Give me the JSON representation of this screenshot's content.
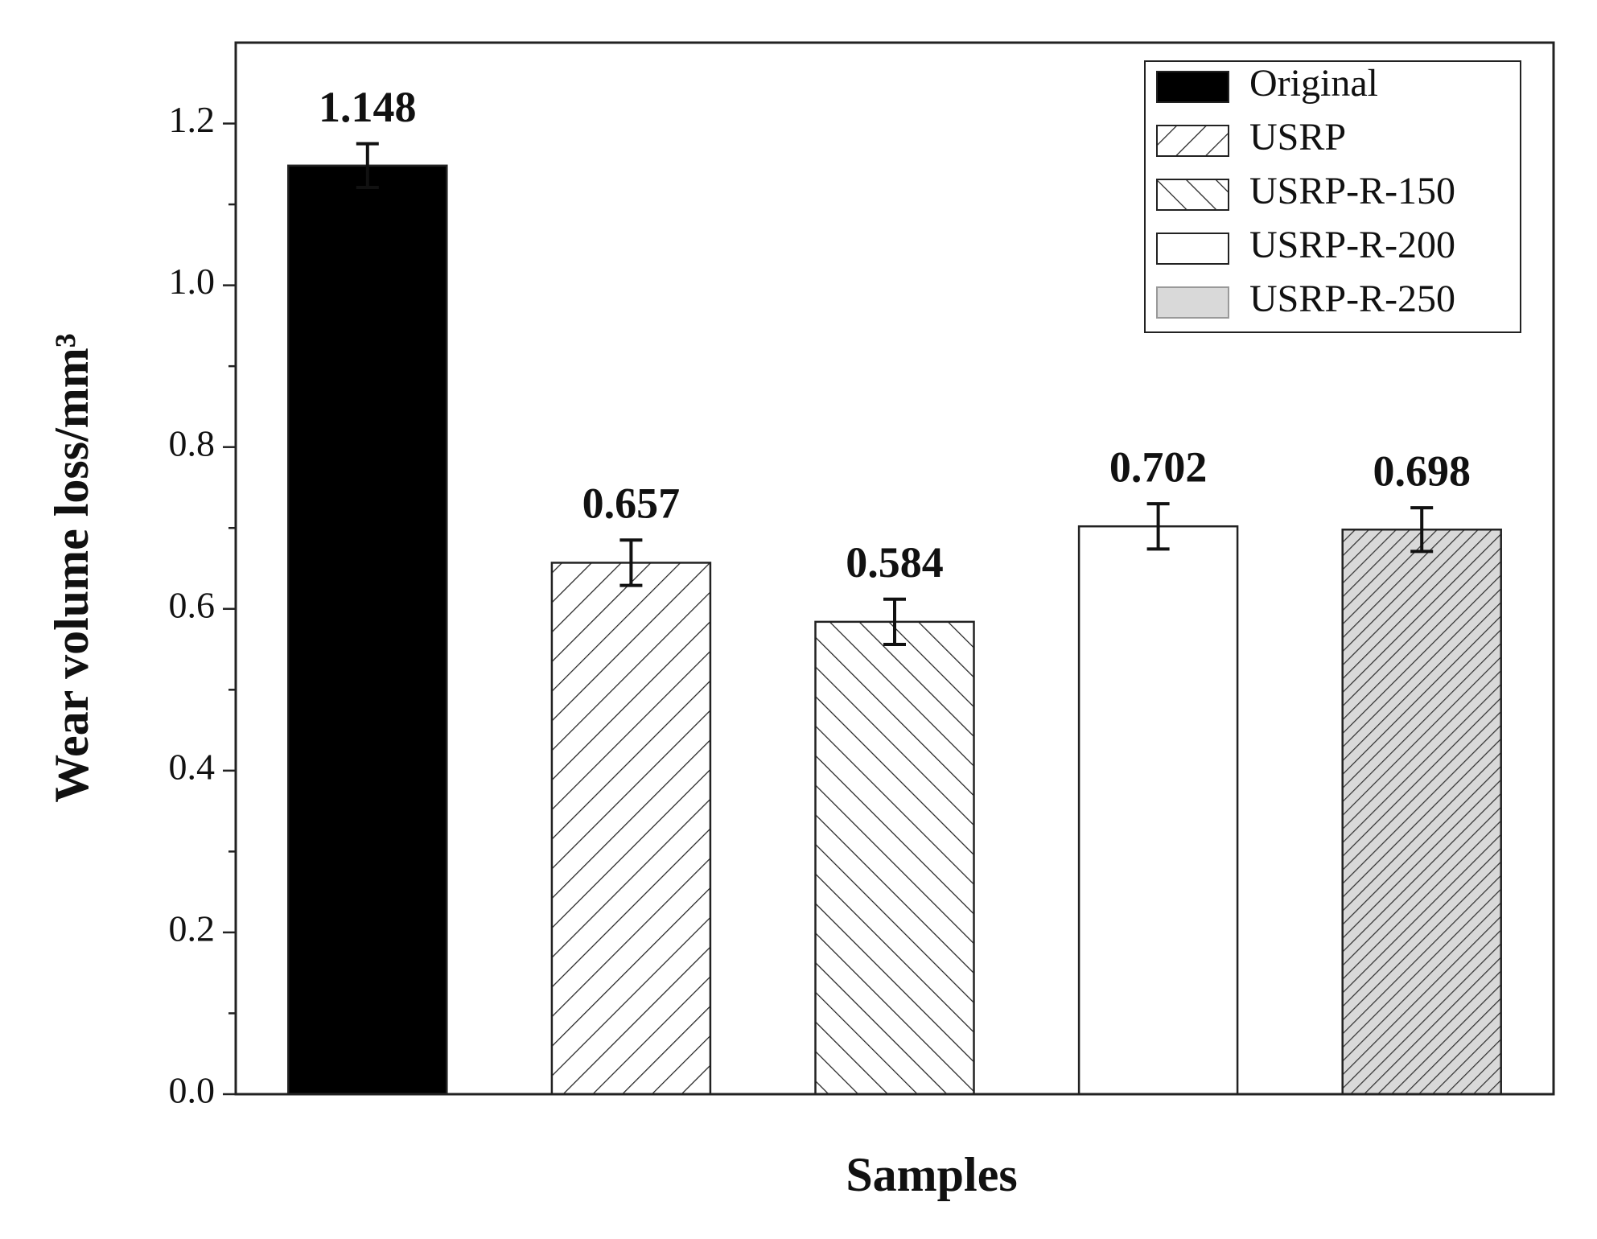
{
  "chart_data": {
    "type": "bar",
    "y_label": "Wear volume loss/mm³",
    "x_label": "Samples",
    "series": [
      {
        "name": "Original",
        "color": "#000000",
        "hatch": "none",
        "values": [
          1.148
        ],
        "errors": [
          0.027
        ]
      },
      {
        "name": "USRP",
        "color": "#ffffff",
        "hatch": "wide-forward",
        "values": [
          0.657
        ],
        "errors": [
          0.028
        ]
      },
      {
        "name": "USRP-R-150",
        "color": "#ffffff",
        "hatch": "wide-backward",
        "values": [
          0.584
        ],
        "errors": [
          0.028
        ]
      },
      {
        "name": "USRP-R-200",
        "color": "#ffffff",
        "hatch": "none",
        "values": [
          0.702
        ],
        "errors": [
          0.028
        ]
      },
      {
        "name": "USRP-R-250",
        "color": "#d9d9d9",
        "hatch": "dense-forward",
        "values": [
          0.698
        ],
        "errors": [
          0.027
        ]
      }
    ],
    "ylim": [
      0,
      1.3
    ],
    "yticks": [
      {
        "value": 0,
        "label": "0.0"
      },
      0.2,
      0.4,
      0.6,
      0.8,
      {
        "value": 1,
        "label": "1.0"
      },
      1.2
    ],
    "yticks_minor": [
      0.1,
      0.3,
      0.5,
      0.7,
      0.9,
      1.1
    ],
    "legend": "upper-right"
  }
}
